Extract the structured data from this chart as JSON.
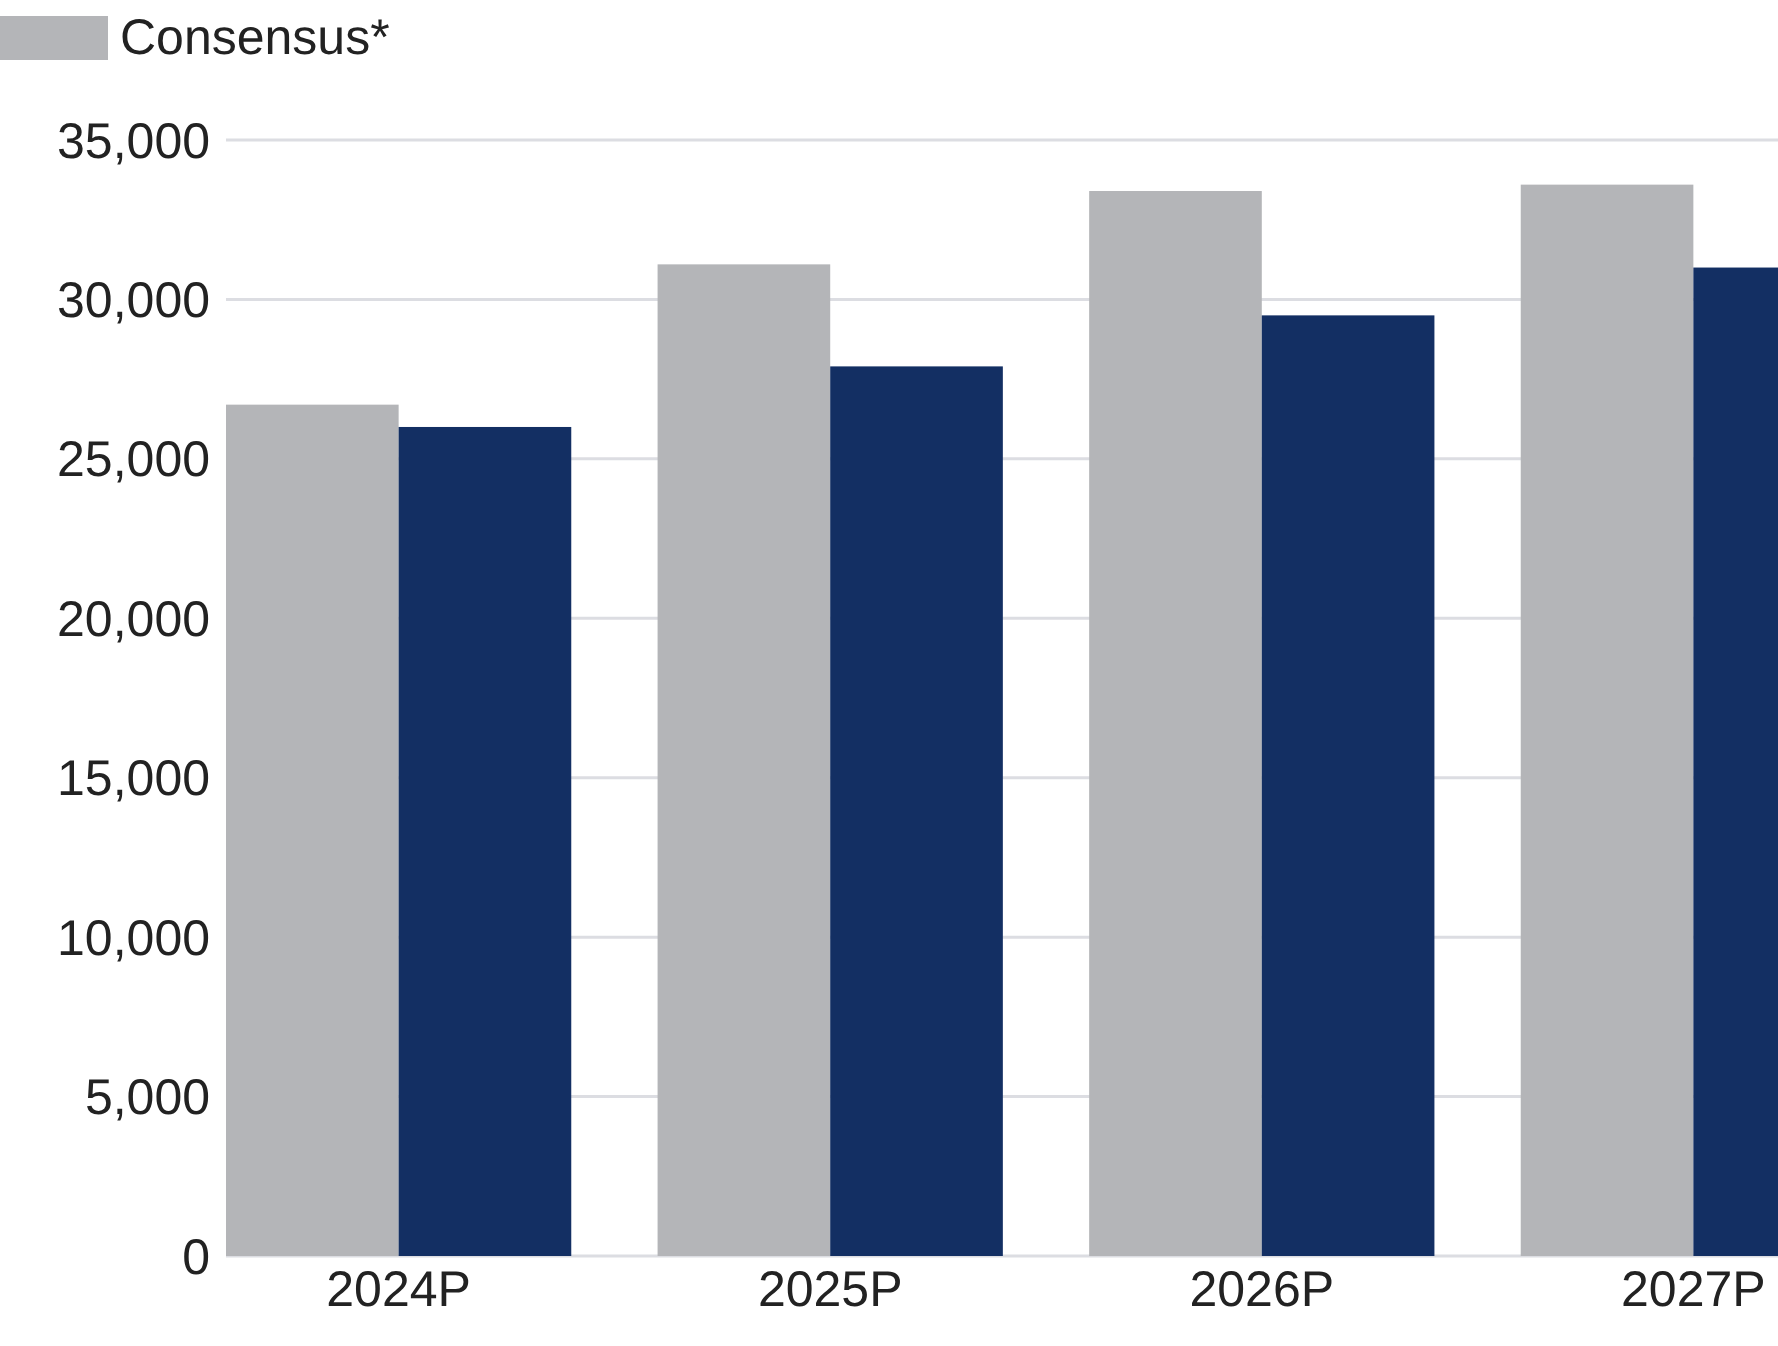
{
  "chart_data": {
    "type": "bar",
    "categories": [
      "2024P",
      "2025P",
      "2026P",
      "2027P"
    ],
    "series": [
      {
        "name": "Consensus*",
        "color": "#b4b5b8",
        "values": [
          26700,
          31100,
          33400,
          33600
        ]
      },
      {
        "color": "#132f63",
        "values": [
          26000,
          27900,
          29500,
          31000
        ]
      }
    ],
    "ylim": [
      0,
      35000
    ],
    "yticks": [
      {
        "value": 0,
        "label": "0"
      },
      {
        "value": 5000,
        "label": "5,000"
      },
      {
        "value": 10000,
        "label": "10,000"
      },
      {
        "value": 15000,
        "label": "15,000"
      },
      {
        "value": 20000,
        "label": "20,000"
      },
      {
        "value": 25000,
        "label": "25,000"
      },
      {
        "value": 30000,
        "label": "30,000"
      },
      {
        "value": 35000,
        "label": "35,000"
      }
    ],
    "grid": "y",
    "legend": "top left"
  }
}
